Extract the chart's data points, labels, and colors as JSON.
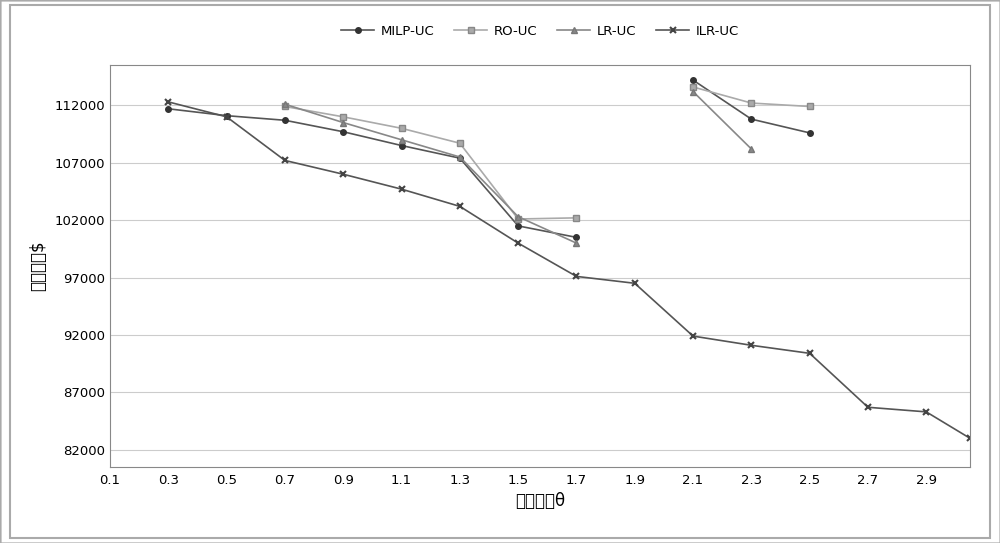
{
  "xlabel": "风电系数θ",
  "ylabel": "总成本：$",
  "legend_labels": [
    "MILP-UC",
    "RO-UC",
    "LR-UC",
    "ILR-UC"
  ],
  "xticks": [
    0.1,
    0.3,
    0.5,
    0.7,
    0.9,
    1.1,
    1.3,
    1.5,
    1.7,
    1.9,
    2.1,
    2.3,
    2.5,
    2.7,
    2.9
  ],
  "yticks": [
    82000,
    87000,
    92000,
    97000,
    102000,
    107000,
    112000
  ],
  "ylim": [
    80500,
    115500
  ],
  "xlim": [
    0.1,
    3.05
  ],
  "milp_uc_x": [
    0.3,
    0.5,
    0.7,
    0.9,
    1.1,
    1.3,
    1.5,
    1.7,
    2.1,
    2.3,
    2.5
  ],
  "milp_uc_y": [
    111700,
    111100,
    110700,
    109700,
    108500,
    107400,
    101500,
    100500,
    114200,
    110800,
    109600
  ],
  "ro_uc_x": [
    0.7,
    0.9,
    1.1,
    1.3,
    1.5,
    1.7,
    2.1,
    2.3,
    2.5
  ],
  "ro_uc_y": [
    111900,
    111000,
    110000,
    108700,
    102100,
    102200,
    113600,
    112200,
    111900
  ],
  "lr_uc_x": [
    0.7,
    0.9,
    1.1,
    1.3,
    1.5,
    1.7,
    2.1,
    2.3
  ],
  "lr_uc_y": [
    112100,
    110500,
    109000,
    107500,
    102300,
    100000,
    113200,
    108200
  ],
  "ilr_uc_x": [
    0.3,
    0.5,
    0.7,
    0.9,
    1.1,
    1.3,
    1.5,
    1.7,
    1.9,
    2.1,
    2.3,
    2.5,
    2.7,
    2.9,
    3.05
  ],
  "ilr_uc_y": [
    112300,
    111000,
    107200,
    106000,
    104700,
    103200,
    100000,
    97100,
    96500,
    91900,
    91100,
    90400,
    85700,
    85300,
    83000
  ],
  "milp_color": "#555555",
  "ro_color": "#aaaaaa",
  "lr_color": "#888888",
  "ilr_color": "#555555",
  "bg_color": "#ffffff",
  "grid_color": "#cccccc",
  "border_color": "#aaaaaa"
}
